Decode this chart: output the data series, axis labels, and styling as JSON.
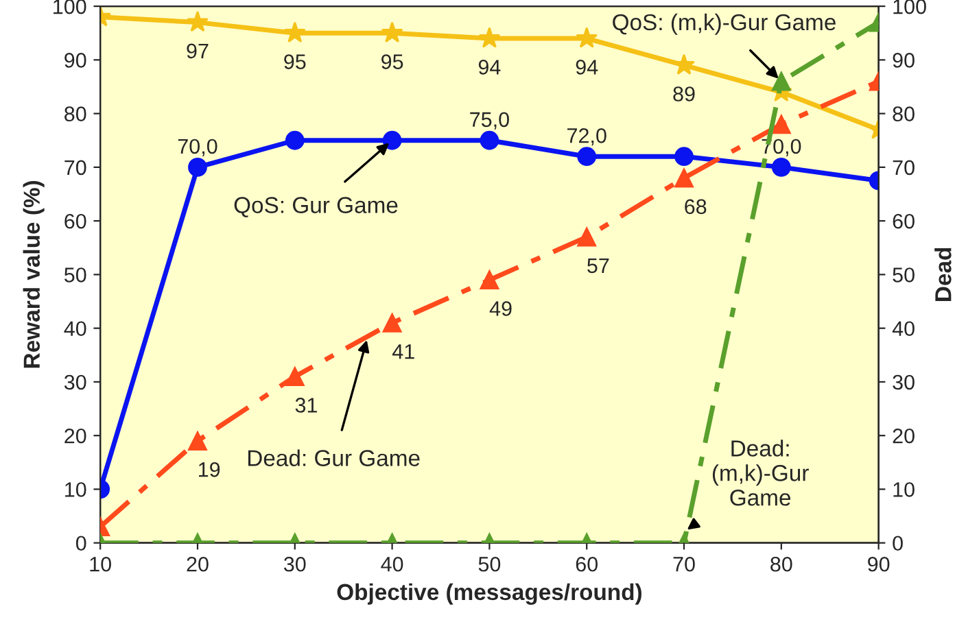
{
  "chart_data": {
    "type": "line",
    "xlabel": "Objective (messages/round)",
    "ylabel": "Reward value (%)",
    "y2label": "Dead",
    "x": [
      10,
      20,
      30,
      40,
      50,
      60,
      70,
      80,
      90
    ],
    "series": [
      {
        "color": "#f5c116",
        "marker": "star",
        "line_style": "solid",
        "values": [
          98,
          97,
          95,
          95,
          94,
          94,
          89,
          84,
          77
        ],
        "value_labels": [
          null,
          "97",
          "95",
          "95",
          "94",
          "94",
          "89",
          null,
          null
        ]
      },
      {
        "color": "#0a14f0",
        "marker": "circle",
        "line_style": "solid",
        "values": [
          10,
          70,
          75,
          75,
          75,
          72,
          72,
          70,
          67.5
        ],
        "value_labels": [
          null,
          "70,0",
          null,
          null,
          "75,0",
          "72,0",
          null,
          "70,0",
          null
        ]
      },
      {
        "color": "#ff4a1c",
        "marker": "triangle",
        "line_style": "dashed",
        "axis": "y2",
        "values": [
          3,
          19,
          31,
          41,
          49,
          57,
          68,
          78,
          86
        ],
        "value_labels": [
          null,
          "19",
          "31",
          "41",
          "49",
          "57",
          "68",
          null,
          null
        ]
      },
      {
        "color": "#5aa02c",
        "marker": "triangle",
        "line_style": "dashed",
        "axis": "y2",
        "values": [
          0,
          0,
          0,
          0,
          0,
          0,
          0,
          86,
          97
        ]
      }
    ],
    "annotations": [
      {
        "text": "QoS: (m,k)-Gur Game",
        "x": 80,
        "y": 86
      },
      {
        "text": "QoS: Gur Game",
        "x": 40,
        "y": 75
      },
      {
        "text": "Dead: Gur Game",
        "x": 37.5,
        "y": 38.5
      },
      {
        "text": "Dead:\n(m,k)-Gur\nGame",
        "x": 70,
        "y": 2
      }
    ],
    "xlim": [
      10,
      90
    ],
    "xticks": [
      10,
      20,
      30,
      40,
      50,
      60,
      70,
      80,
      90
    ],
    "ylim": [
      0,
      100
    ],
    "yticks": [
      0,
      10,
      20,
      30,
      40,
      50,
      60,
      70,
      80,
      90,
      100
    ],
    "y2lim": [
      0,
      100
    ],
    "y2ticks": [
      0,
      10,
      20,
      30,
      40,
      50,
      60,
      70,
      80,
      90,
      100
    ],
    "grid": false,
    "legend": false
  }
}
